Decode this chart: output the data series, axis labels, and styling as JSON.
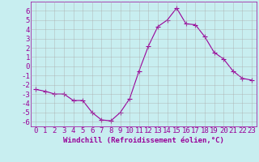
{
  "x": [
    0,
    1,
    2,
    3,
    4,
    5,
    6,
    7,
    8,
    9,
    10,
    11,
    12,
    13,
    14,
    15,
    16,
    17,
    18,
    19,
    20,
    21,
    22,
    23
  ],
  "y": [
    -2.5,
    -2.7,
    -3.0,
    -3.0,
    -3.7,
    -3.7,
    -5.0,
    -5.8,
    -5.9,
    -5.0,
    -3.5,
    -0.5,
    2.2,
    4.3,
    5.0,
    6.3,
    4.6,
    4.5,
    3.2,
    1.5,
    0.8,
    -0.5,
    -1.3,
    -1.5
  ],
  "line_color": "#990099",
  "marker": "+",
  "marker_size": 4,
  "bg_color": "#c8eef0",
  "grid_color": "#aaaaaa",
  "ylim": [
    -6.5,
    7.0
  ],
  "xlim": [
    -0.5,
    23.5
  ],
  "yticks": [
    -6,
    -5,
    -4,
    -3,
    -2,
    -1,
    0,
    1,
    2,
    3,
    4,
    5,
    6
  ],
  "xticks": [
    0,
    1,
    2,
    3,
    4,
    5,
    6,
    7,
    8,
    9,
    10,
    11,
    12,
    13,
    14,
    15,
    16,
    17,
    18,
    19,
    20,
    21,
    22,
    23
  ],
  "xlabel": "Windchill (Refroidissement éolien,°C)",
  "tick_label_color": "#990099",
  "axis_color": "#990099",
  "font_size": 6.5
}
